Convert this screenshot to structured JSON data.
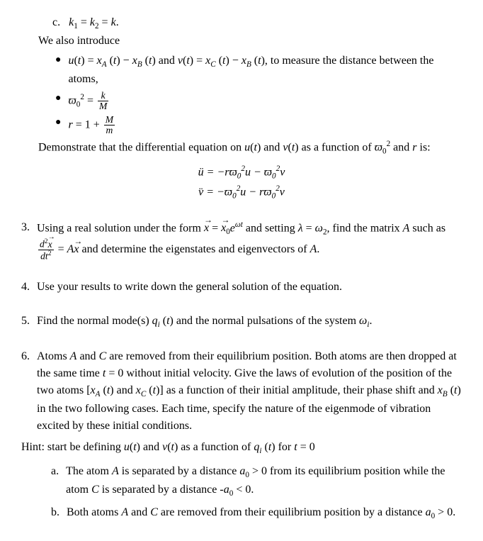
{
  "item_c": {
    "letter": "c.",
    "text": "k₁ = k₂ = k."
  },
  "intro": "We also introduce",
  "bullets": {
    "b1_html": "<i>u</i>(<i>t</i>) = <i>x<span class='sub'>A</span></i> (<i>t</i>) − <i>x<span class='sub'>B</span></i> (<i>t</i>) and <i>v</i>(<i>t</i>) = <i>x<span class='sub'>C</span></i> (<i>t</i>) − <i>x<span class='sub'>B</span></i> (<i>t</i>), to measure the distance between the atoms,",
    "b2_html": "<i>ϖ</i><span class='sub'>0</span><span class='sup'>2</span> = <span class='frac'><span class='num'><i>k</i></span><span class='den'><i>M</i></span></span>",
    "b3_html": "<i>r</i> = 1 + <span class='frac'><span class='num'><i>M</i></span><span class='den'><i>m</i></span></span>"
  },
  "demonstrate_html": "Demonstrate that the differential equation on <i>u</i>(<i>t</i>) and <i>v</i>(<i>t</i>) as a function of <i>ϖ</i><span class='sub'>0</span><span class='sup'>2</span> and <i>r</i> is:",
  "eq1_html": "<i>ü</i> = −<i>rϖ</i><span class='sub'>0</span><span class='sup'>2</span><i>u</i> − <i>ϖ</i><span class='sub'>0</span><span class='sup'>2</span><i>v</i>",
  "eq2_html": "<i>v̈</i> = −<i>ϖ</i><span class='sub'>0</span><span class='sup'>2</span><i>u</i> − <i>rϖ</i><span class='sub'>0</span><span class='sup'>2</span><i>v</i>",
  "q3": {
    "num": "3.",
    "text_html": "Using a real solution under the form <span class='vec'><i>x</i></span> = <span class='vec'><i>x</i><span class='sub'>0</span></span><i>e</i><span class='sup'><i>ωt</i></span> and setting <i>λ</i> = <i>ω</i><span class='sub'>2</span>, find the matrix <i>A</i> such as <span class='frac'><span class='num'><i>d</i><span class='sup'>2</span><span class='vec'><i>x</i></span></span><span class='den'><i>dt</i><span class='sup'>2</span></span></span> = <i>A</i><span class='vec'><i>x</i></span> and determine the eigenstates and eigenvectors of <i>A</i>."
  },
  "q4": {
    "num": "4.",
    "text": "Use your results to write down the general solution of the equation."
  },
  "q5": {
    "num": "5.",
    "text_html": "Find the normal mode(s) <i>q<span class='sub'>i</span></i> (<i>t</i>) and the normal pulsations of the system <i>ω<span class='sub'>i</span></i>."
  },
  "q6": {
    "num": "6.",
    "text_html": "Atoms <i>A</i> and <i>C</i> are removed from their equilibrium position. Both atoms are then dropped at the same time <i>t</i> = 0 without initial velocity. Give the laws of evolution of the position of the two atoms [<i>x<span class='sub'>A</span></i> (<i>t</i>) and <i>x<span class='sub'>C</span></i> (<i>t</i>)] as a function of their initial amplitude, their phase shift and <i>x<span class='sub'>B</span></i> (<i>t</i>) in the two following cases. Each time, specify the nature of the eigenmode of vibration excited by these initial conditions."
  },
  "hint_html": "Hint: start be defining <i>u</i>(<i>t</i>) and <i>v</i>(<i>t</i>) as a function of <i>q<span class='sub'>i</span></i> (<i>t</i>) for <i>t</i> = 0",
  "sub": {
    "a": {
      "letter": "a.",
      "text_html": "The atom <i>A</i> is separated by a distance <i>a</i><span class='sub'>0</span> > 0 from its equilibrium position while the atom <i>C</i> is separated by a distance -<i>a</i><span class='sub'>0</span> < 0."
    },
    "b": {
      "letter": "b.",
      "text_html": "Both atoms <i>A</i> and <i>C</i> are removed from their equilibrium position by a distance <i>a</i><span class='sub'>0</span> > 0."
    }
  }
}
